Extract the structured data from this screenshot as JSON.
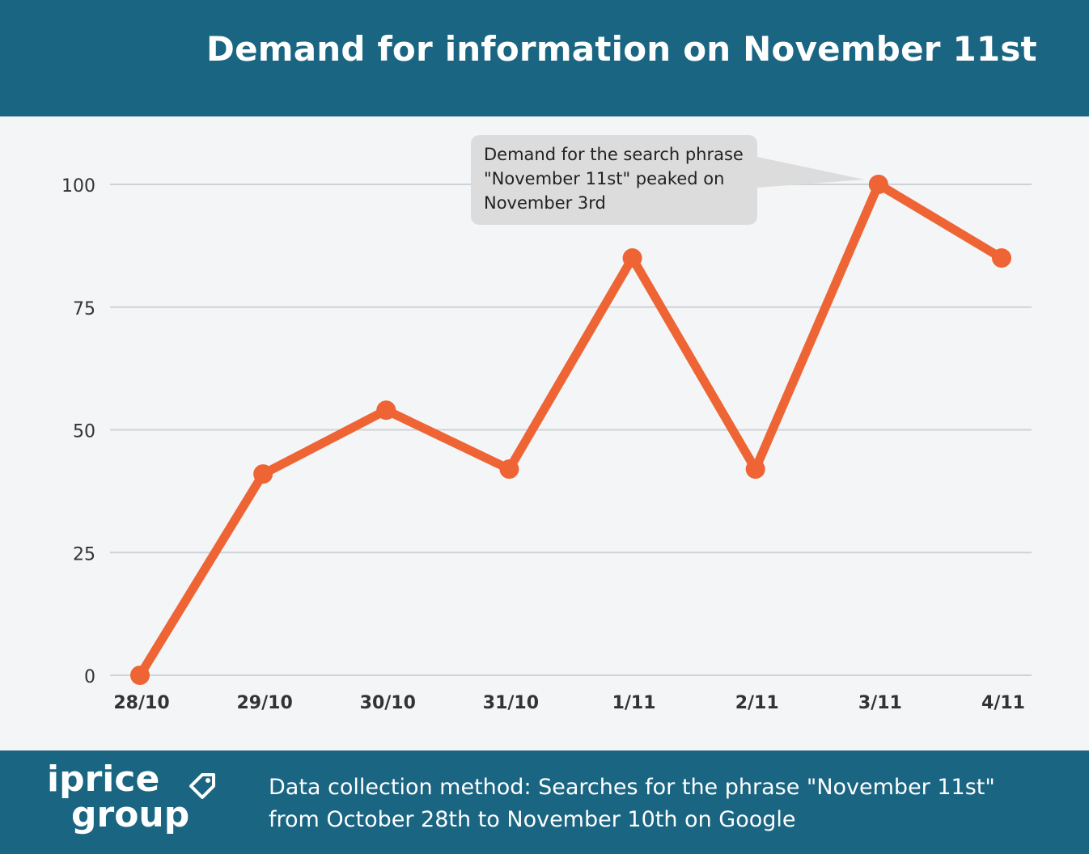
{
  "header": {
    "title": "Demand for information on November 11st"
  },
  "chart_data": {
    "type": "line",
    "categories": [
      "28/10",
      "29/10",
      "30/10",
      "31/10",
      "1/11",
      "2/11",
      "3/11",
      "4/11"
    ],
    "series": [
      {
        "values": [
          0,
          41,
          54,
          42,
          85,
          42,
          100,
          85
        ]
      }
    ],
    "ylim": [
      0,
      100
    ],
    "yticks": [
      0,
      25,
      50,
      75,
      100
    ],
    "ytick_labels": [
      "0",
      "25",
      "50",
      "75",
      "100"
    ],
    "grid": true,
    "line_color": "#ee6434",
    "annotation": {
      "target_category": "3/11",
      "lines": [
        "Demand for the search phrase",
        "\"November 11st\" peaked on",
        "November 3rd"
      ]
    }
  },
  "footer": {
    "logo_line1": "iprice",
    "logo_line2": "group",
    "note_line1": "Data collection method: Searches for the phrase \"November 11st\"",
    "note_line2": "from October 28th to November 10th on Google"
  },
  "colors": {
    "header_bg": "#1a6582",
    "chart_bg": "#f3f5f6",
    "grid": "#cfd3d6",
    "callout_bg": "#dcdcdc"
  },
  "icons": {
    "logo_tag": "price-tag-icon"
  }
}
